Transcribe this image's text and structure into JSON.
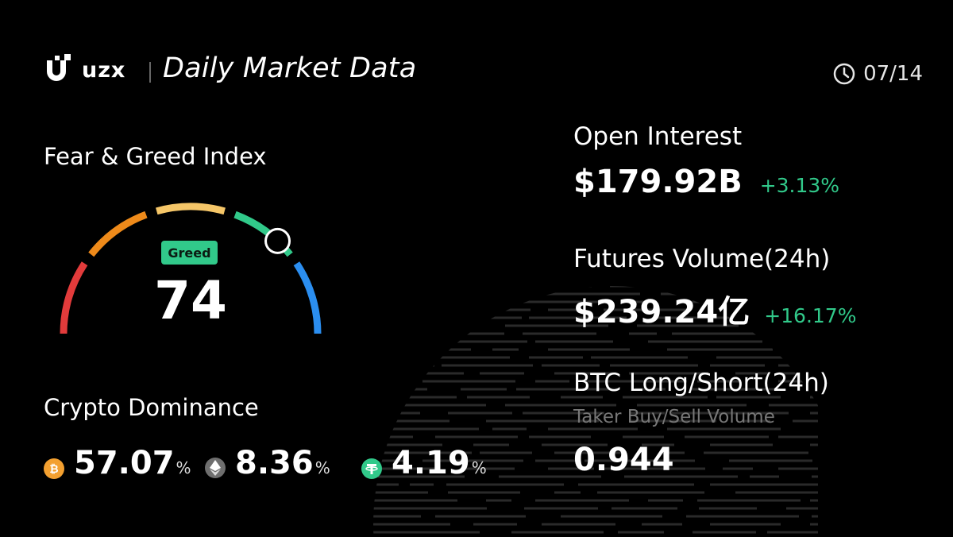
{
  "header": {
    "brand": "uzx",
    "title": "Daily Market Data",
    "date": "07/14"
  },
  "fear_greed": {
    "title": "Fear & Greed Index",
    "label": "Greed",
    "value": 74,
    "value_text": "74",
    "colors": [
      "#e23b3b",
      "#ee8a1a",
      "#f5c668",
      "#31c98a",
      "#2b8ef0"
    ]
  },
  "dominance": {
    "title": "Crypto Dominance",
    "items": [
      {
        "icon": "bitcoin-icon",
        "value": "57.07",
        "unit": "%",
        "color": "#f3a030"
      },
      {
        "icon": "ethereum-icon",
        "value": "8.36",
        "unit": "%",
        "color": "#6f6f6f"
      },
      {
        "icon": "tether-icon",
        "value": "4.19",
        "unit": "%",
        "color": "#31c98a"
      }
    ]
  },
  "stats": {
    "open_interest": {
      "title": "Open Interest",
      "value": "$179.92B",
      "change": "+3.13%"
    },
    "futures_volume": {
      "title": "Futures Volume(24h)",
      "value": "$239.24亿",
      "change": "+16.17%"
    },
    "btc_long_short": {
      "title": "BTC Long/Short(24h)",
      "subtitle": "Taker Buy/Sell Volume",
      "value": "0.944"
    }
  },
  "colors": {
    "accent_green": "#31c98a",
    "background": "#000000"
  }
}
